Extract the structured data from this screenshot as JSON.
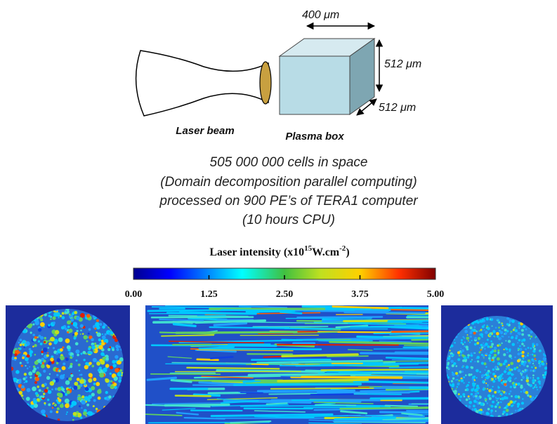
{
  "diagram": {
    "dimensions": {
      "width": "400 μm",
      "height": "512 μm",
      "depth": "512 μm"
    },
    "labels": {
      "beam": "Laser beam",
      "box": "Plasma box"
    },
    "caption": [
      "505 000 000 cells in space",
      "(Domain decomposition parallel computing)",
      "processed on 900 PE’s of TERA1 computer",
      "(10 hours CPU)"
    ]
  },
  "colorbar": {
    "title": {
      "text": "Laser intensity (x10",
      "exp1": "15",
      "unit": "W.cm",
      "exp2": "-2",
      "close": ")"
    },
    "ticks": [
      "0.00",
      "1.25",
      "2.50",
      "3.75",
      "5.00"
    ]
  }
}
